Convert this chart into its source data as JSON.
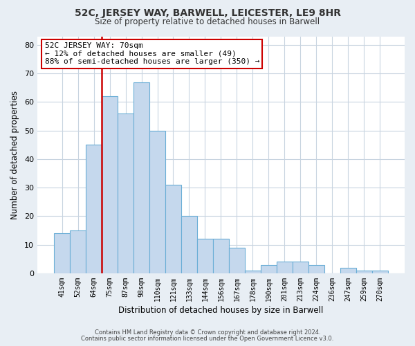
{
  "title": "52C, JERSEY WAY, BARWELL, LEICESTER, LE9 8HR",
  "subtitle": "Size of property relative to detached houses in Barwell",
  "xlabel": "Distribution of detached houses by size in Barwell",
  "ylabel": "Number of detached properties",
  "categories": [
    "41sqm",
    "52sqm",
    "64sqm",
    "75sqm",
    "87sqm",
    "98sqm",
    "110sqm",
    "121sqm",
    "133sqm",
    "144sqm",
    "156sqm",
    "167sqm",
    "178sqm",
    "190sqm",
    "201sqm",
    "213sqm",
    "224sqm",
    "236sqm",
    "247sqm",
    "259sqm",
    "270sqm"
  ],
  "values": [
    14,
    15,
    45,
    62,
    56,
    67,
    50,
    31,
    20,
    12,
    12,
    9,
    1,
    3,
    4,
    4,
    3,
    0,
    2,
    1,
    1
  ],
  "bar_color": "#c5d8ed",
  "bar_edge_color": "#6aaed6",
  "marker_line_color": "#cc0000",
  "annotation_line1": "52C JERSEY WAY: 70sqm",
  "annotation_line2": "← 12% of detached houses are smaller (49)",
  "annotation_line3": "88% of semi-detached houses are larger (350) →",
  "annotation_box_color": "white",
  "annotation_box_edge_color": "#cc0000",
  "ylim": [
    0,
    83
  ],
  "yticks": [
    0,
    10,
    20,
    30,
    40,
    50,
    60,
    70,
    80
  ],
  "footer_line1": "Contains HM Land Registry data © Crown copyright and database right 2024.",
  "footer_line2": "Contains public sector information licensed under the Open Government Licence v3.0.",
  "background_color": "#e8eef4",
  "plot_background_color": "white",
  "grid_color": "#c8d4e0"
}
